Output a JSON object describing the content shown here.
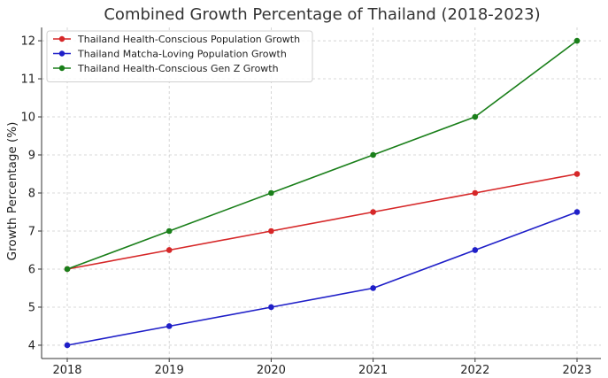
{
  "chart_data": {
    "type": "line",
    "title": "Combined Growth Percentage of Thailand (2018-2023)",
    "xlabel": "",
    "ylabel": "Growth Percentage (%)",
    "x": [
      "2018",
      "2019",
      "2020",
      "2021",
      "2022",
      "2023"
    ],
    "ylim": [
      3.65,
      12.35
    ],
    "yticks": [
      4,
      5,
      6,
      7,
      8,
      9,
      10,
      11,
      12
    ],
    "grid": true,
    "legend_position": "top-left",
    "series": [
      {
        "name": "Thailand Health-Conscious Population Growth",
        "color": "#d62728",
        "values": [
          6,
          6.5,
          7,
          7.5,
          8,
          8.5
        ]
      },
      {
        "name": "Thailand Matcha-Loving Population Growth",
        "color": "#1f1fc8",
        "values": [
          4,
          4.5,
          5,
          5.5,
          6.5,
          7.5
        ]
      },
      {
        "name": "Thailand Health-Conscious Gen Z Growth",
        "color": "#1a7f1a",
        "values": [
          6,
          7,
          8,
          9,
          10,
          12
        ]
      }
    ]
  }
}
